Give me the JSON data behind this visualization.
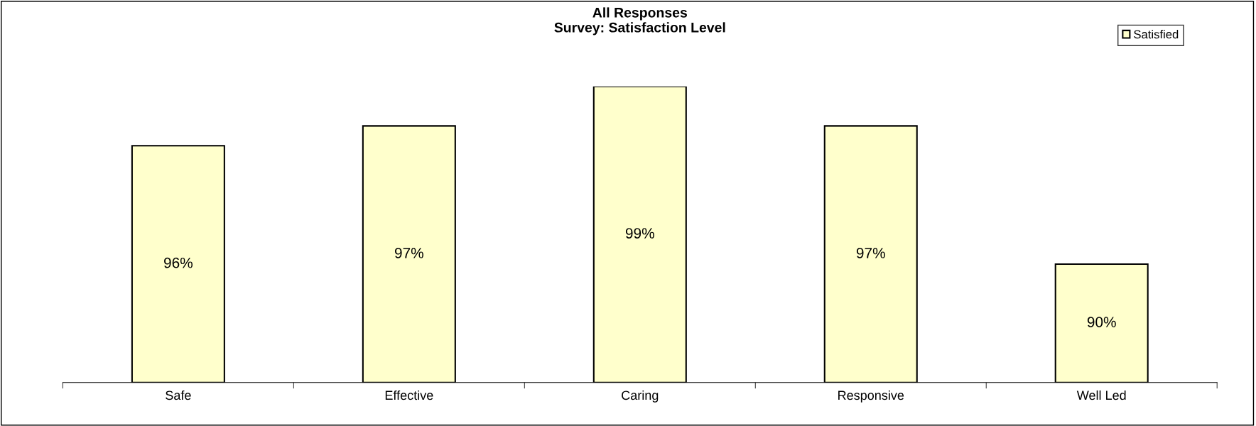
{
  "chart_data": {
    "type": "bar",
    "title": "All Responses\nSurvey: Satisfaction Level",
    "categories": [
      "Safe",
      "Effective",
      "Caring",
      "Responsive",
      "Well Led"
    ],
    "series": [
      {
        "name": "Satisfied",
        "color": "#ffffcc",
        "values": [
          96,
          97,
          99,
          97,
          90
        ],
        "value_labels": [
          "96%",
          "97%",
          "99%",
          "97%",
          "90%"
        ]
      }
    ],
    "ylim": [
      84,
      99
    ],
    "tick_labels": "x",
    "grid": false,
    "legend": "top right"
  }
}
